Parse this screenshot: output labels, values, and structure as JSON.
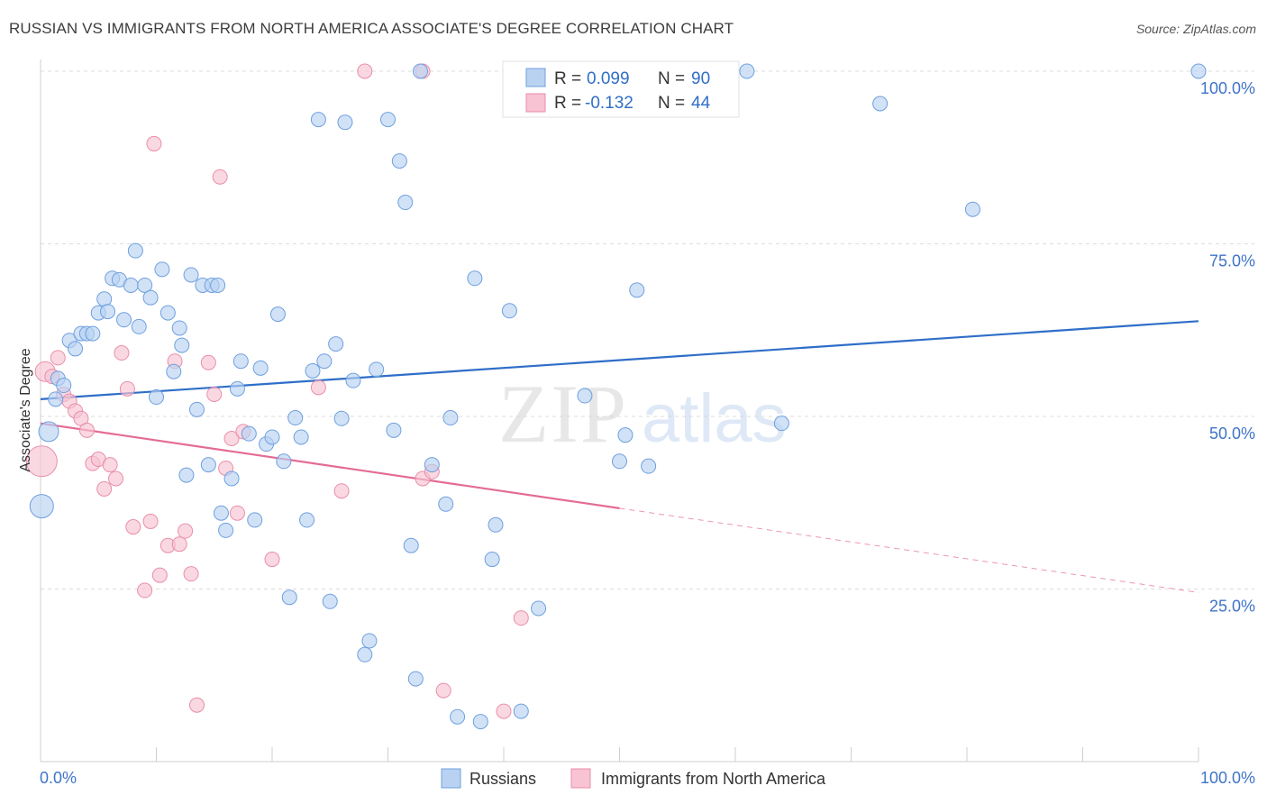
{
  "header": {
    "title": "RUSSIAN VS IMMIGRANTS FROM NORTH AMERICA ASSOCIATE'S DEGREE CORRELATION CHART",
    "source": "Source: ZipAtlas.com"
  },
  "watermark": {
    "zip": "ZIP",
    "atlas": "atlas"
  },
  "legend_top": {
    "rows": [
      {
        "r_label": "R =",
        "r_value": "0.099",
        "n_label": "N =",
        "n_value": "90"
      },
      {
        "r_label": "R =",
        "r_value": "-0.132",
        "n_label": "N =",
        "n_value": "44"
      }
    ]
  },
  "legend_bottom": {
    "items": [
      "Russians",
      "Immigrants from North America"
    ]
  },
  "colors": {
    "blue_fill": "#b9d2f2",
    "blue_stroke": "#6fa0de",
    "blue_line": "#2f6ec8",
    "pink_fill": "#f8c3d3",
    "pink_stroke": "#e98eab",
    "pink_line": "#e46b95",
    "tick_text": "#3f74c8",
    "value_text": "#2f6ec8"
  },
  "chart_data": {
    "type": "scatter",
    "title": "RUSSIAN VS IMMIGRANTS FROM NORTH AMERICA ASSOCIATE'S DEGREE CORRELATION CHART",
    "xlabel": "",
    "ylabel": "Associate's Degree",
    "xlim": [
      0,
      100
    ],
    "ylim": [
      0,
      100
    ],
    "x_tick_labels": [
      "0.0%",
      "100.0%"
    ],
    "y_tick_labels": [
      "25.0%",
      "50.0%",
      "75.0%",
      "100.0%"
    ],
    "y_ticks": [
      25,
      50,
      75,
      100
    ],
    "grid": "horizontal dashed",
    "legend_placement": "bottom-center",
    "series": [
      {
        "name": "Russians",
        "R": 0.099,
        "N": 90,
        "trend": {
          "x": [
            0,
            100
          ],
          "y": [
            52.5,
            63.8
          ]
        },
        "points": [
          [
            0.1,
            37,
            "L"
          ],
          [
            0.7,
            47.8,
            "M"
          ],
          [
            1.3,
            52.5
          ],
          [
            1.5,
            55.5
          ],
          [
            2.0,
            54.5
          ],
          [
            2.5,
            61
          ],
          [
            3.0,
            59.8
          ],
          [
            3.5,
            62
          ],
          [
            4.0,
            62
          ],
          [
            4.5,
            62
          ],
          [
            5.0,
            65
          ],
          [
            5.5,
            67
          ],
          [
            5.8,
            65.2
          ],
          [
            6.2,
            70
          ],
          [
            6.8,
            69.8
          ],
          [
            7.2,
            64
          ],
          [
            7.8,
            69
          ],
          [
            8.2,
            74
          ],
          [
            8.5,
            63
          ],
          [
            9.0,
            69
          ],
          [
            9.5,
            67.2
          ],
          [
            10.0,
            52.8
          ],
          [
            10.5,
            71.3
          ],
          [
            11.0,
            65
          ],
          [
            11.5,
            56.5
          ],
          [
            12.0,
            62.8
          ],
          [
            12.2,
            60.3
          ],
          [
            12.6,
            41.5
          ],
          [
            13.0,
            70.5
          ],
          [
            13.5,
            51
          ],
          [
            14.0,
            69
          ],
          [
            14.5,
            43
          ],
          [
            14.8,
            69
          ],
          [
            15.3,
            69
          ],
          [
            15.6,
            36
          ],
          [
            16.0,
            33.5
          ],
          [
            16.5,
            41
          ],
          [
            17.0,
            54
          ],
          [
            17.3,
            58
          ],
          [
            18.0,
            47.5
          ],
          [
            18.5,
            35
          ],
          [
            19.0,
            57
          ],
          [
            19.5,
            46
          ],
          [
            20.0,
            47
          ],
          [
            20.5,
            64.8
          ],
          [
            21.0,
            43.5
          ],
          [
            21.5,
            23.8
          ],
          [
            22.0,
            49.8
          ],
          [
            22.5,
            47
          ],
          [
            23.0,
            35
          ],
          [
            23.5,
            56.6
          ],
          [
            24.0,
            93
          ],
          [
            24.5,
            58
          ],
          [
            25.0,
            23.2
          ],
          [
            25.5,
            60.5
          ],
          [
            26.0,
            49.7
          ],
          [
            26.3,
            92.6
          ],
          [
            27.0,
            55.2
          ],
          [
            28.0,
            15.5
          ],
          [
            28.4,
            17.5
          ],
          [
            29.0,
            56.8
          ],
          [
            30.0,
            93
          ],
          [
            30.5,
            48
          ],
          [
            31.0,
            87
          ],
          [
            31.5,
            81
          ],
          [
            32.0,
            31.3
          ],
          [
            32.4,
            12
          ],
          [
            32.8,
            100
          ],
          [
            33.8,
            43
          ],
          [
            35.0,
            37.3
          ],
          [
            35.4,
            49.8
          ],
          [
            36.0,
            6.5
          ],
          [
            37.5,
            70
          ],
          [
            38.0,
            5.8
          ],
          [
            39.0,
            29.3
          ],
          [
            39.3,
            34.3
          ],
          [
            40.5,
            65.3
          ],
          [
            41.5,
            7.3
          ],
          [
            43.0,
            22.2
          ],
          [
            47.0,
            53
          ],
          [
            50.0,
            43.5
          ],
          [
            50.5,
            47.3
          ],
          [
            51.5,
            68.3
          ],
          [
            52.5,
            42.8
          ],
          [
            59.5,
            100
          ],
          [
            61.0,
            100
          ],
          [
            64.0,
            49
          ],
          [
            72.5,
            95.3
          ],
          [
            80.5,
            80
          ],
          [
            100,
            100
          ]
        ]
      },
      {
        "name": "Immigrants from North America",
        "R": -0.132,
        "N": 44,
        "trend": {
          "x": [
            0,
            50
          ],
          "y": [
            49,
            36.7
          ]
        },
        "trend_dashed": {
          "x": [
            50,
            100
          ],
          "y": [
            36.7,
            24.5
          ]
        },
        "points": [
          [
            0.1,
            43.5,
            "XL"
          ],
          [
            0.4,
            56.5,
            "M"
          ],
          [
            1.0,
            55.8
          ],
          [
            1.5,
            58.5
          ],
          [
            2.0,
            53.2
          ],
          [
            2.5,
            52.2
          ],
          [
            3.0,
            50.8
          ],
          [
            3.5,
            49.7
          ],
          [
            4.0,
            48
          ],
          [
            4.5,
            43.2
          ],
          [
            5.0,
            43.8
          ],
          [
            5.5,
            39.5
          ],
          [
            6.0,
            43
          ],
          [
            6.5,
            41
          ],
          [
            7.0,
            59.2
          ],
          [
            7.5,
            54
          ],
          [
            8.0,
            34
          ],
          [
            9.0,
            24.8
          ],
          [
            9.5,
            34.8
          ],
          [
            9.8,
            89.5
          ],
          [
            10.3,
            27
          ],
          [
            11.0,
            31.3
          ],
          [
            11.6,
            58
          ],
          [
            12.0,
            31.5
          ],
          [
            12.5,
            33.4
          ],
          [
            13.0,
            27.2
          ],
          [
            13.5,
            8.2
          ],
          [
            14.5,
            57.8
          ],
          [
            15.0,
            53.2
          ],
          [
            15.5,
            84.7
          ],
          [
            16.0,
            42.5
          ],
          [
            16.5,
            46.8
          ],
          [
            17.0,
            36
          ],
          [
            17.5,
            47.8
          ],
          [
            20.0,
            29.3
          ],
          [
            24.0,
            54.2
          ],
          [
            26.0,
            39.2
          ],
          [
            28.0,
            100
          ],
          [
            33.0,
            41
          ],
          [
            33.8,
            42
          ],
          [
            34.8,
            10.3
          ],
          [
            40.0,
            7.3
          ],
          [
            41.5,
            20.8
          ],
          [
            33.0,
            100
          ]
        ]
      }
    ]
  }
}
